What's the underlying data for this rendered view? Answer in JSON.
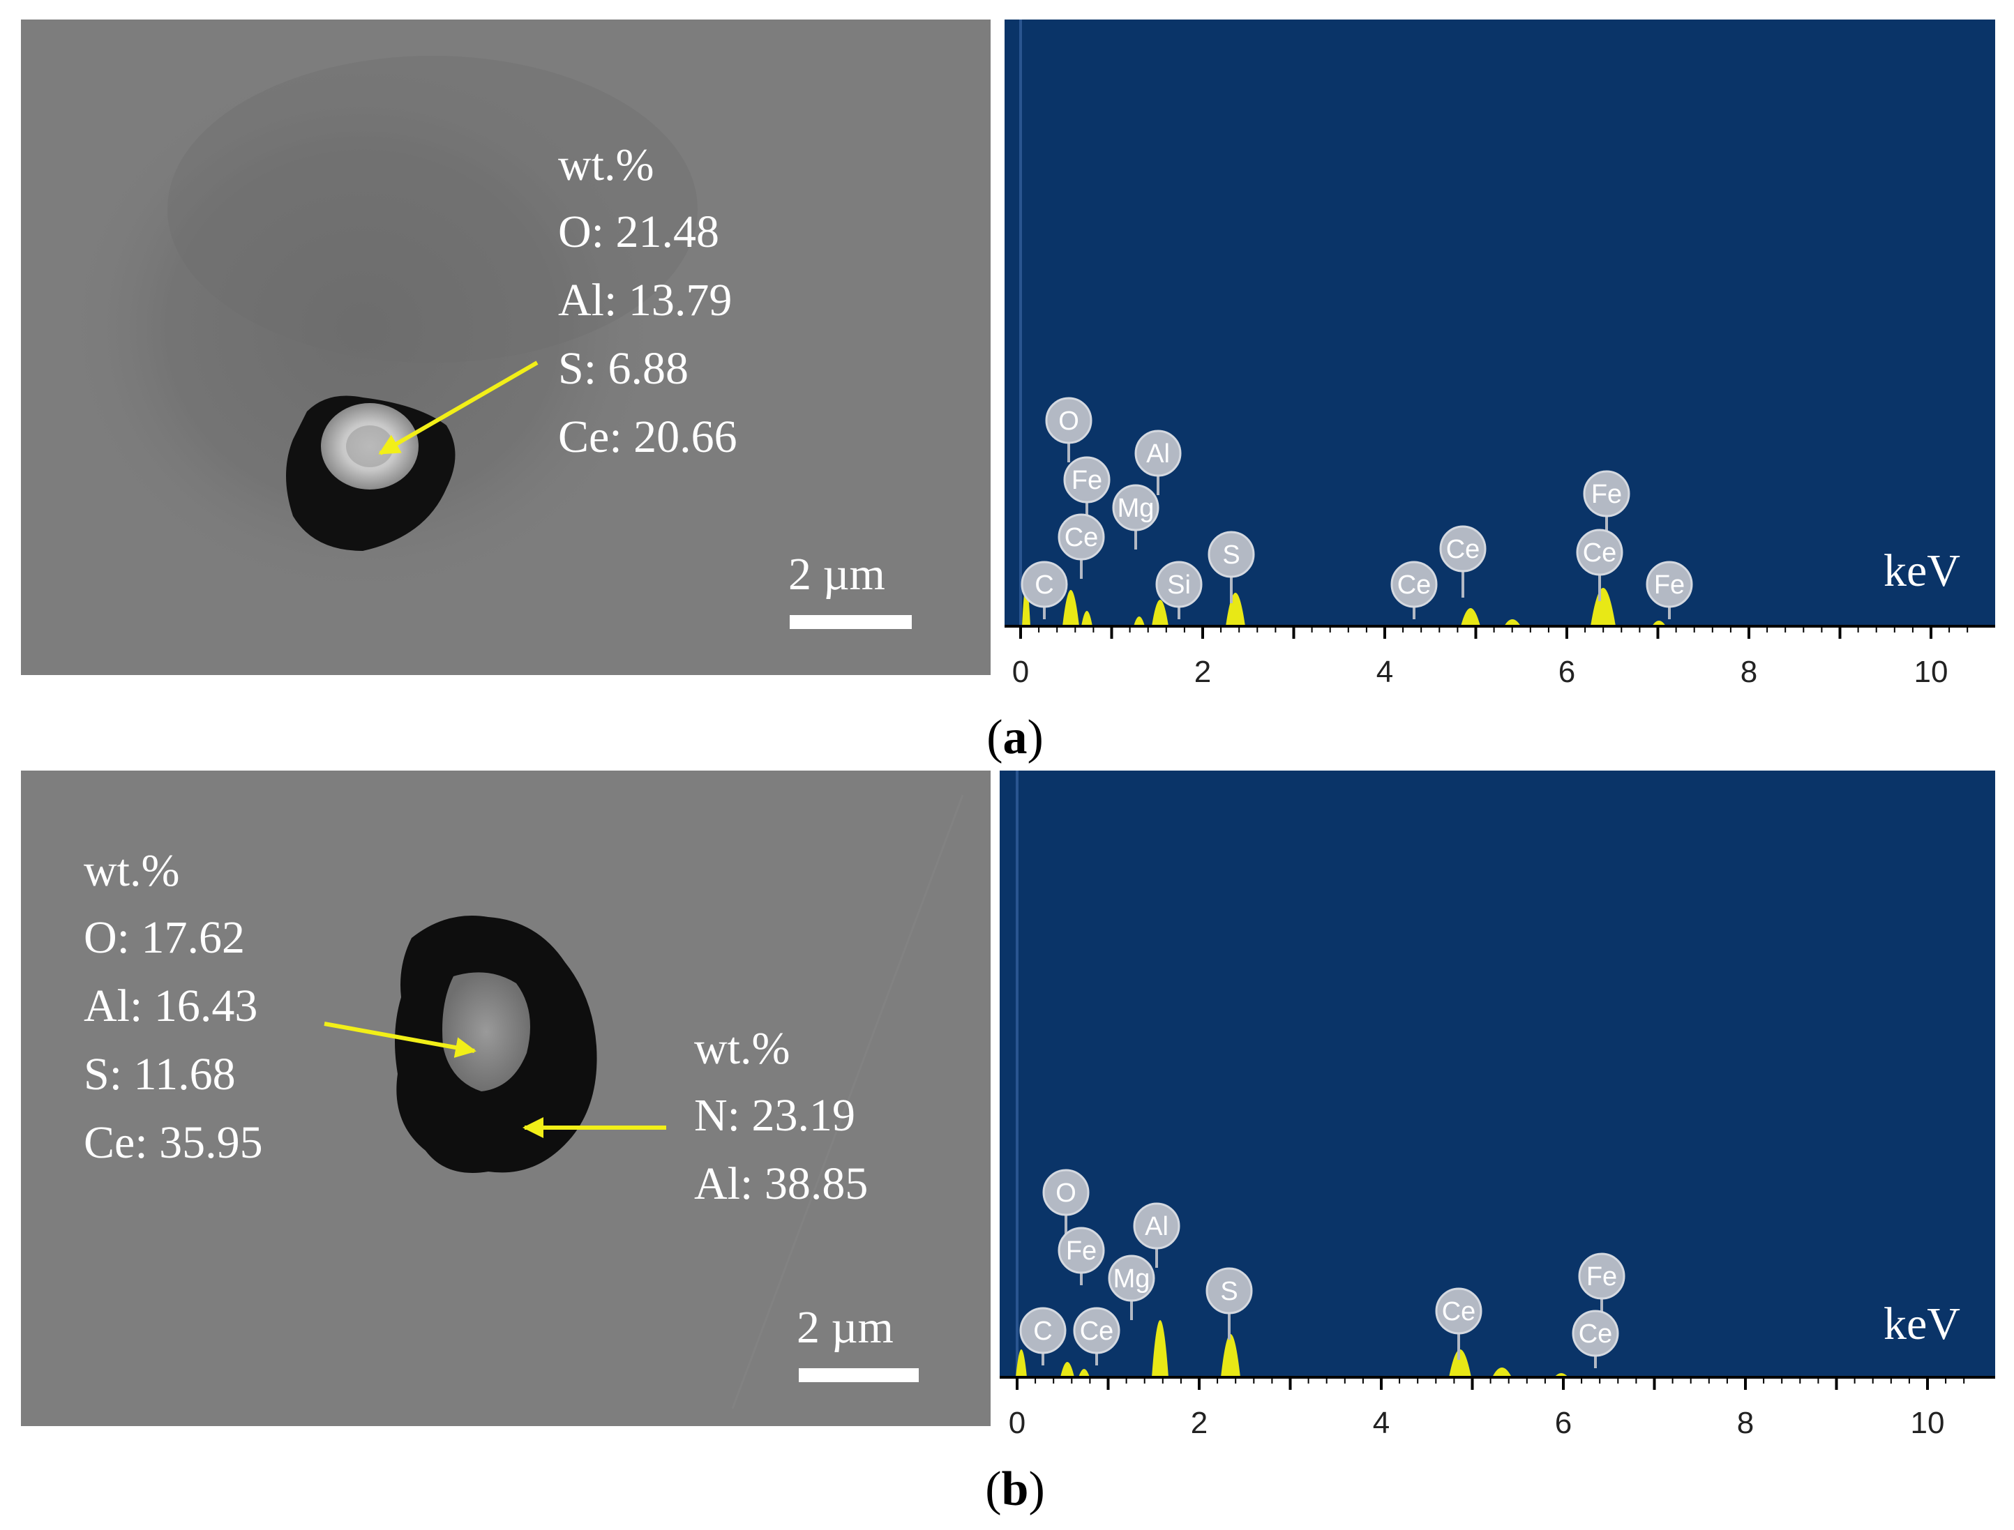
{
  "colors": {
    "sem_background": "#7d7d7d",
    "spectrum_background": "#0a3468",
    "arrow": "#f2ef18",
    "peak_fill": "#e8e816",
    "label_bubble": "#b3b9c4",
    "overlay_text": "#ffffff"
  },
  "panels": [
    {
      "caption_letter": "a",
      "sem": {
        "scale_bar_label": "2 µm",
        "annotations": [
          {
            "header": "wt.%",
            "lines": [
              "O: 21.48",
              "Al: 13.79",
              "S: 6.88",
              "Ce: 20.66"
            ]
          }
        ]
      },
      "spectrum": {
        "unit_label": "keV",
        "x_ticks": [
          "0",
          "2",
          "4",
          "6",
          "8",
          "10"
        ],
        "element_labels": [
          "O",
          "Fe",
          "Al",
          "Mg",
          "Ce",
          "S",
          "C",
          "Si",
          "Ce",
          "Ce",
          "Fe",
          "Ce",
          "Fe"
        ]
      }
    },
    {
      "caption_letter": "b",
      "sem": {
        "scale_bar_label": "2 µm",
        "annotations": [
          {
            "header": "wt.%",
            "lines": [
              "O: 17.62",
              "Al: 16.43",
              "S: 11.68",
              "Ce: 35.95"
            ]
          },
          {
            "header": "wt.%",
            "lines": [
              "N: 23.19",
              "Al: 38.85"
            ]
          }
        ]
      },
      "spectrum": {
        "unit_label": "keV",
        "x_ticks": [
          "0",
          "2",
          "4",
          "6",
          "8",
          "10"
        ],
        "element_labels": [
          "O",
          "Fe",
          "Al",
          "Mg",
          "S",
          "C",
          "Ce",
          "Ce",
          "Fe",
          "Ce"
        ]
      }
    }
  ]
}
